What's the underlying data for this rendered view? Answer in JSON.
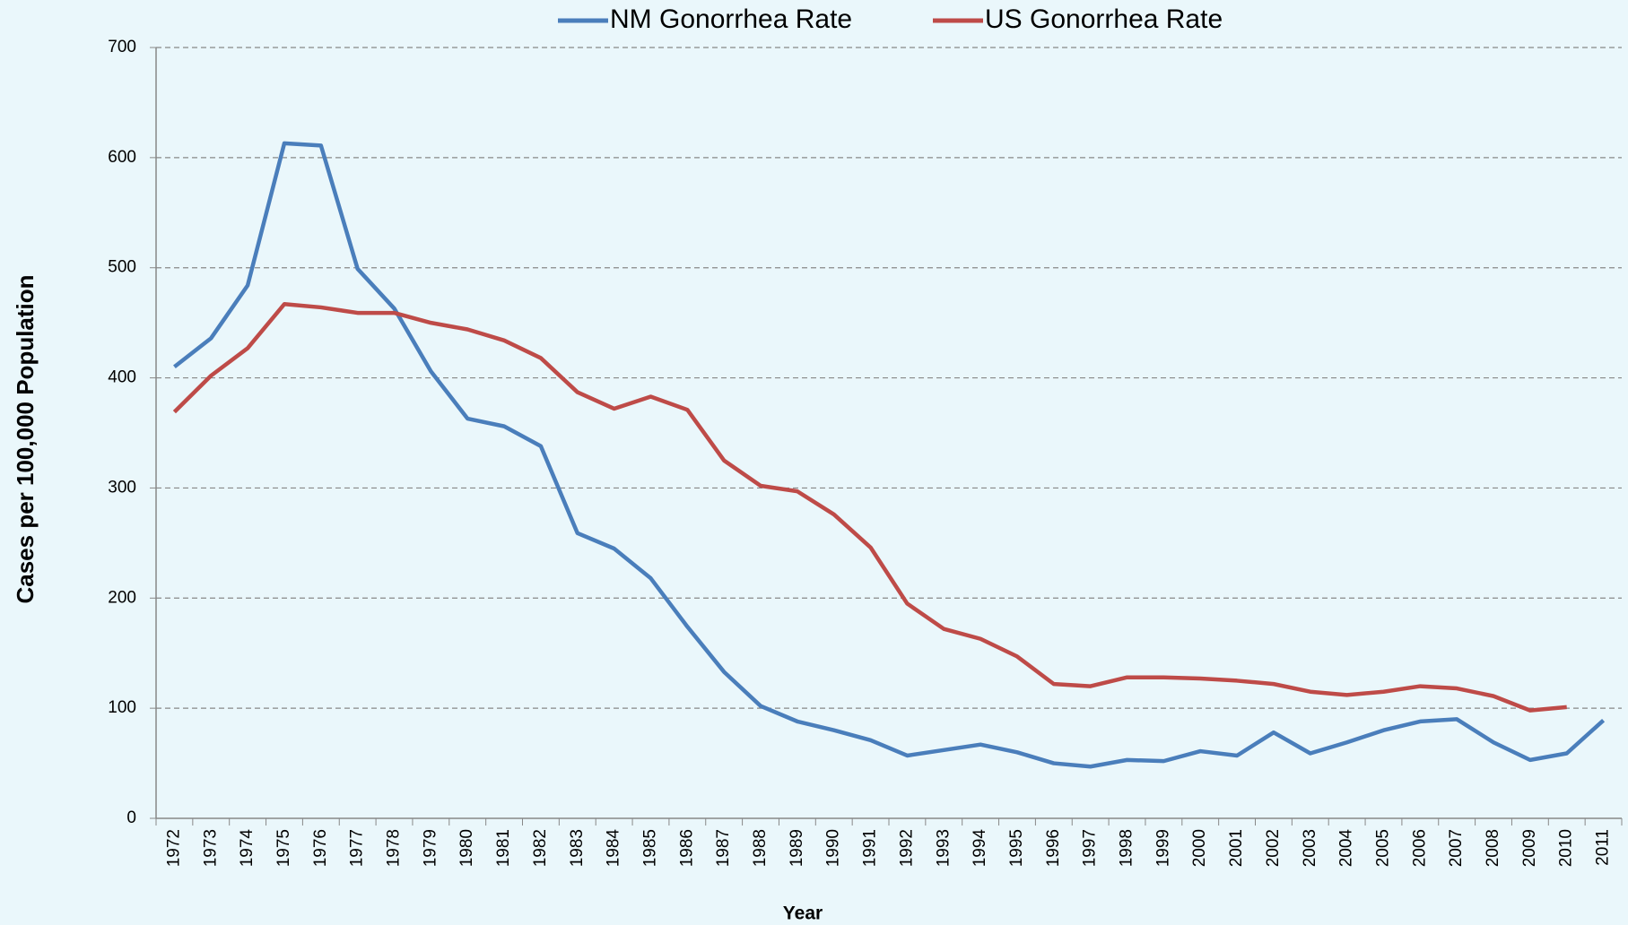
{
  "chart_data": {
    "type": "line",
    "x_label": "Year",
    "y_label": "Cases per 100,000 Population",
    "categories": [
      "1972",
      "1973",
      "1974",
      "1975",
      "1976",
      "1977",
      "1978",
      "1979",
      "1980",
      "1981",
      "1982",
      "1983",
      "1984",
      "1985",
      "1986",
      "1987",
      "1988",
      "1989",
      "1990",
      "1991",
      "1992",
      "1993",
      "1994",
      "1995",
      "1996",
      "1997",
      "1998",
      "1999",
      "2000",
      "2001",
      "2002",
      "2003",
      "2004",
      "2005",
      "2006",
      "2007",
      "2008",
      "2009",
      "2010",
      "2011"
    ],
    "series": [
      {
        "name": "NM Gonorrhea Rate",
        "color": "#4a7ebb",
        "values": [
          410,
          436,
          484,
          613,
          611,
          499,
          463,
          406,
          363,
          356,
          338,
          259,
          245,
          218,
          174,
          133,
          102,
          88,
          80,
          71,
          57,
          62,
          67,
          60,
          50,
          47,
          53,
          52,
          61,
          57,
          78,
          59,
          69,
          80,
          88,
          90,
          69,
          53,
          59,
          89
        ]
      },
      {
        "name": "US Gonorrhea Rate",
        "color": "#be4b48",
        "values": [
          369,
          402,
          427,
          467,
          464,
          459,
          459,
          450,
          444,
          434,
          418,
          387,
          372,
          383,
          371,
          325,
          302,
          297,
          276,
          246,
          195,
          172,
          163,
          147,
          122,
          120,
          128,
          128,
          127,
          125,
          122,
          115,
          112,
          115,
          120,
          118,
          111,
          98,
          101,
          null
        ]
      }
    ],
    "ylim": [
      0,
      700
    ],
    "yticks": [
      0,
      100,
      200,
      300,
      400,
      500,
      600,
      700
    ],
    "grid": true
  }
}
